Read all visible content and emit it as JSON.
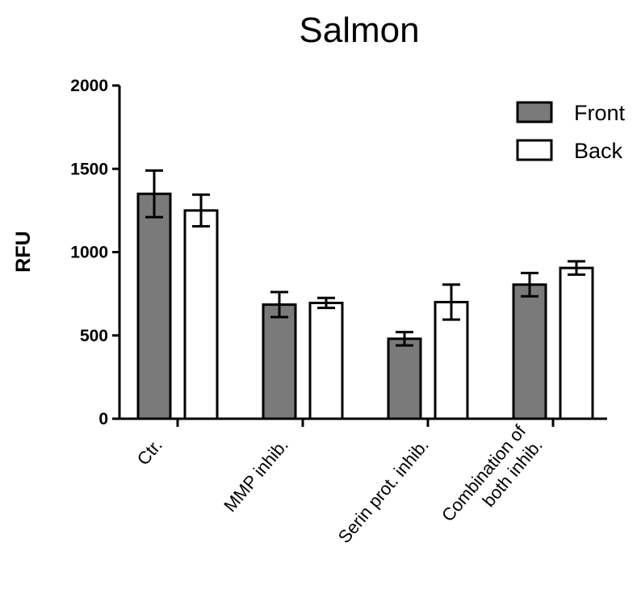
{
  "chart_data": {
    "type": "bar",
    "title": "Salmon",
    "ylabel": "RFU",
    "xlabel": "",
    "ylim": [
      0,
      2000
    ],
    "yticks": [
      0,
      500,
      1000,
      1500,
      2000
    ],
    "categories": [
      [
        "Ctr."
      ],
      [
        "MMP inhib."
      ],
      [
        "Serin prot. inhib."
      ],
      [
        "Combination of",
        "both inhib."
      ]
    ],
    "series": [
      {
        "name": "Front",
        "color": "#7a7a7a",
        "values": [
          1350,
          685,
          480,
          805
        ],
        "errors": [
          140,
          75,
          40,
          70
        ]
      },
      {
        "name": "Back",
        "color": "#ffffff",
        "values": [
          1250,
          695,
          700,
          905
        ],
        "errors": [
          95,
          30,
          105,
          40
        ]
      }
    ],
    "error_bars": true,
    "grid": false,
    "legend_position": "top-right"
  }
}
